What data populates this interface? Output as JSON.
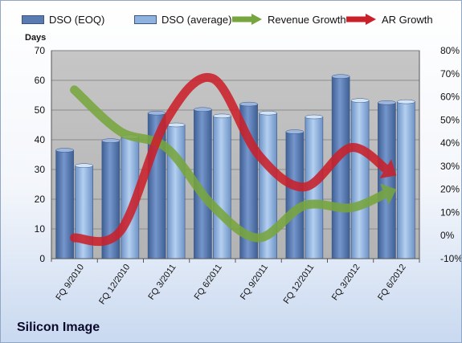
{
  "chart_data": {
    "type": "bar",
    "title": "",
    "company": "Silicon Image",
    "ylabel": "Days",
    "ylim": [
      0,
      70
    ],
    "y2lim": [
      -10,
      80
    ],
    "y_ticks": [
      "0",
      "10",
      "20",
      "30",
      "40",
      "50",
      "60",
      "70"
    ],
    "y2_ticks": [
      "-10%",
      "0%",
      "10%",
      "20%",
      "30%",
      "40%",
      "50%",
      "60%",
      "70%",
      "80%"
    ],
    "categories": [
      "FQ 9/2010",
      "FQ 12/2010",
      "FQ 3/2011",
      "FQ 6/2011",
      "FQ 9/2011",
      "FQ 12/2011",
      "FQ 3/2012",
      "FQ 6/2012"
    ],
    "series": [
      {
        "name": "DSO (EOQ)",
        "kind": "bar",
        "axis": "left",
        "color": "#5a7bb0",
        "values": [
          36.5,
          39.7,
          49,
          50.2,
          52,
          42.7,
          61.3,
          52.5
        ]
      },
      {
        "name": "DSO (average)",
        "kind": "bar",
        "axis": "left",
        "color": "#8eb3e0",
        "values": [
          31.3,
          41,
          45,
          48,
          49,
          47.7,
          53.2,
          52.8
        ]
      },
      {
        "name": "Revenue Growth",
        "kind": "arrow-curve",
        "axis": "right",
        "color": "#77a53e",
        "values": [
          63,
          45,
          38,
          13,
          -1,
          13,
          12,
          20
        ]
      },
      {
        "name": "AR Growth",
        "kind": "arrow-curve",
        "axis": "right",
        "color": "#c9202a",
        "values": [
          -1,
          2,
          50,
          68,
          35,
          21,
          38,
          26
        ]
      }
    ],
    "grid": true,
    "legend_position": "top",
    "colors": {
      "plot_bg": "#c0c0c0",
      "frame_border": "#8fa6c4"
    }
  }
}
